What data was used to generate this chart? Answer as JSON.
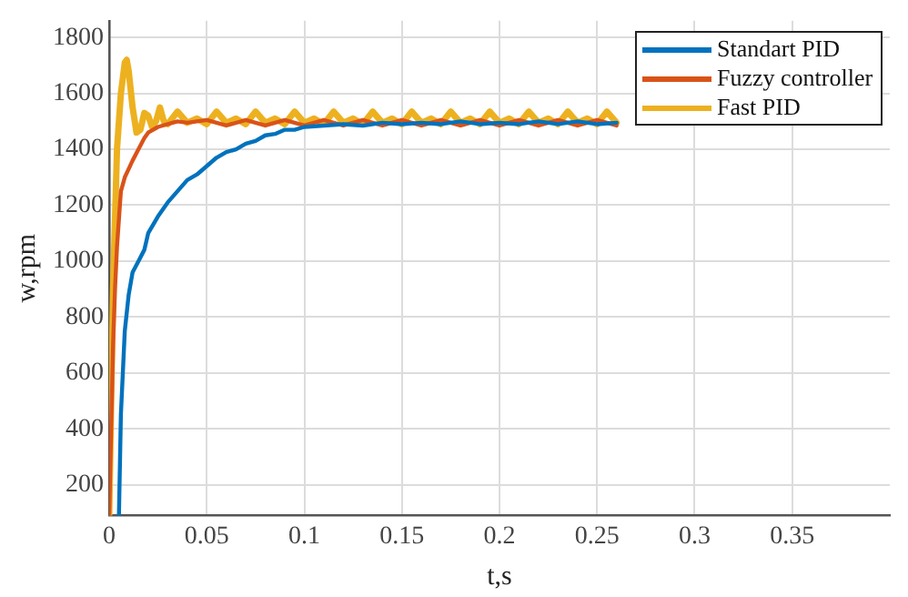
{
  "chart_data": {
    "type": "line",
    "xlabel": "t,s",
    "ylabel": "w,rpm",
    "xlim": [
      0,
      0.4
    ],
    "ylim": [
      90,
      1860
    ],
    "xticks": [
      0,
      0.05,
      0.1,
      0.15,
      0.2,
      0.25,
      0.3,
      0.35
    ],
    "yticks": [
      200,
      400,
      600,
      800,
      1000,
      1200,
      1400,
      1600,
      1800
    ],
    "grid": true,
    "legend": "top right",
    "marker": "none",
    "line_style": "solid",
    "series": [
      {
        "name": "Standart PID",
        "color": "#0072bd",
        "x": [
          0.005,
          0.006,
          0.007,
          0.008,
          0.01,
          0.012,
          0.015,
          0.018,
          0.02,
          0.025,
          0.03,
          0.035,
          0.04,
          0.045,
          0.05,
          0.055,
          0.06,
          0.065,
          0.07,
          0.075,
          0.08,
          0.085,
          0.09,
          0.095,
          0.1,
          0.11,
          0.12,
          0.13,
          0.14,
          0.15,
          0.16,
          0.17,
          0.18,
          0.19,
          0.2,
          0.21,
          0.22,
          0.23,
          0.24,
          0.25,
          0.26
        ],
        "values": [
          90,
          450,
          600,
          750,
          880,
          960,
          1000,
          1040,
          1100,
          1160,
          1210,
          1250,
          1290,
          1310,
          1340,
          1370,
          1390,
          1400,
          1420,
          1430,
          1450,
          1455,
          1470,
          1470,
          1480,
          1485,
          1490,
          1485,
          1495,
          1490,
          1495,
          1490,
          1500,
          1490,
          1495,
          1490,
          1500,
          1490,
          1500,
          1490,
          1495
        ]
      },
      {
        "name": "Fuzzy controller",
        "color": "#d95319",
        "x": [
          0,
          0.002,
          0.003,
          0.004,
          0.005,
          0.006,
          0.008,
          0.01,
          0.012,
          0.015,
          0.018,
          0.02,
          0.025,
          0.03,
          0.035,
          0.04,
          0.05,
          0.06,
          0.07,
          0.08,
          0.09,
          0.1,
          0.11,
          0.12,
          0.13,
          0.14,
          0.15,
          0.16,
          0.17,
          0.18,
          0.19,
          0.2,
          0.21,
          0.22,
          0.23,
          0.24,
          0.25,
          0.26
        ],
        "values": [
          90,
          700,
          900,
          1050,
          1150,
          1250,
          1300,
          1330,
          1360,
          1400,
          1440,
          1460,
          1480,
          1490,
          1500,
          1495,
          1505,
          1485,
          1505,
          1485,
          1505,
          1485,
          1505,
          1485,
          1505,
          1485,
          1505,
          1485,
          1505,
          1485,
          1505,
          1485,
          1505,
          1485,
          1505,
          1485,
          1505,
          1485
        ]
      },
      {
        "name": "Fast PID",
        "color": "#edb120",
        "x": [
          0,
          0.002,
          0.004,
          0.006,
          0.008,
          0.009,
          0.01,
          0.012,
          0.014,
          0.016,
          0.018,
          0.02,
          0.022,
          0.024,
          0.026,
          0.028,
          0.03,
          0.035,
          0.04,
          0.045,
          0.05,
          0.055,
          0.06,
          0.065,
          0.07,
          0.075,
          0.08,
          0.085,
          0.09,
          0.095,
          0.1,
          0.105,
          0.11,
          0.115,
          0.12,
          0.125,
          0.13,
          0.135,
          0.14,
          0.145,
          0.15,
          0.155,
          0.16,
          0.165,
          0.17,
          0.175,
          0.18,
          0.185,
          0.19,
          0.195,
          0.2,
          0.205,
          0.21,
          0.215,
          0.22,
          0.225,
          0.23,
          0.235,
          0.24,
          0.245,
          0.25,
          0.255,
          0.26
        ],
        "values": [
          90,
          900,
          1400,
          1600,
          1710,
          1720,
          1680,
          1550,
          1460,
          1470,
          1530,
          1520,
          1480,
          1500,
          1550,
          1500,
          1490,
          1535,
          1495,
          1510,
          1490,
          1535,
          1495,
          1510,
          1490,
          1535,
          1495,
          1510,
          1490,
          1535,
          1495,
          1510,
          1490,
          1535,
          1495,
          1510,
          1490,
          1535,
          1495,
          1510,
          1490,
          1535,
          1495,
          1510,
          1490,
          1535,
          1495,
          1510,
          1490,
          1535,
          1495,
          1510,
          1490,
          1535,
          1495,
          1510,
          1490,
          1535,
          1495,
          1510,
          1490,
          1535,
          1495
        ]
      }
    ]
  }
}
